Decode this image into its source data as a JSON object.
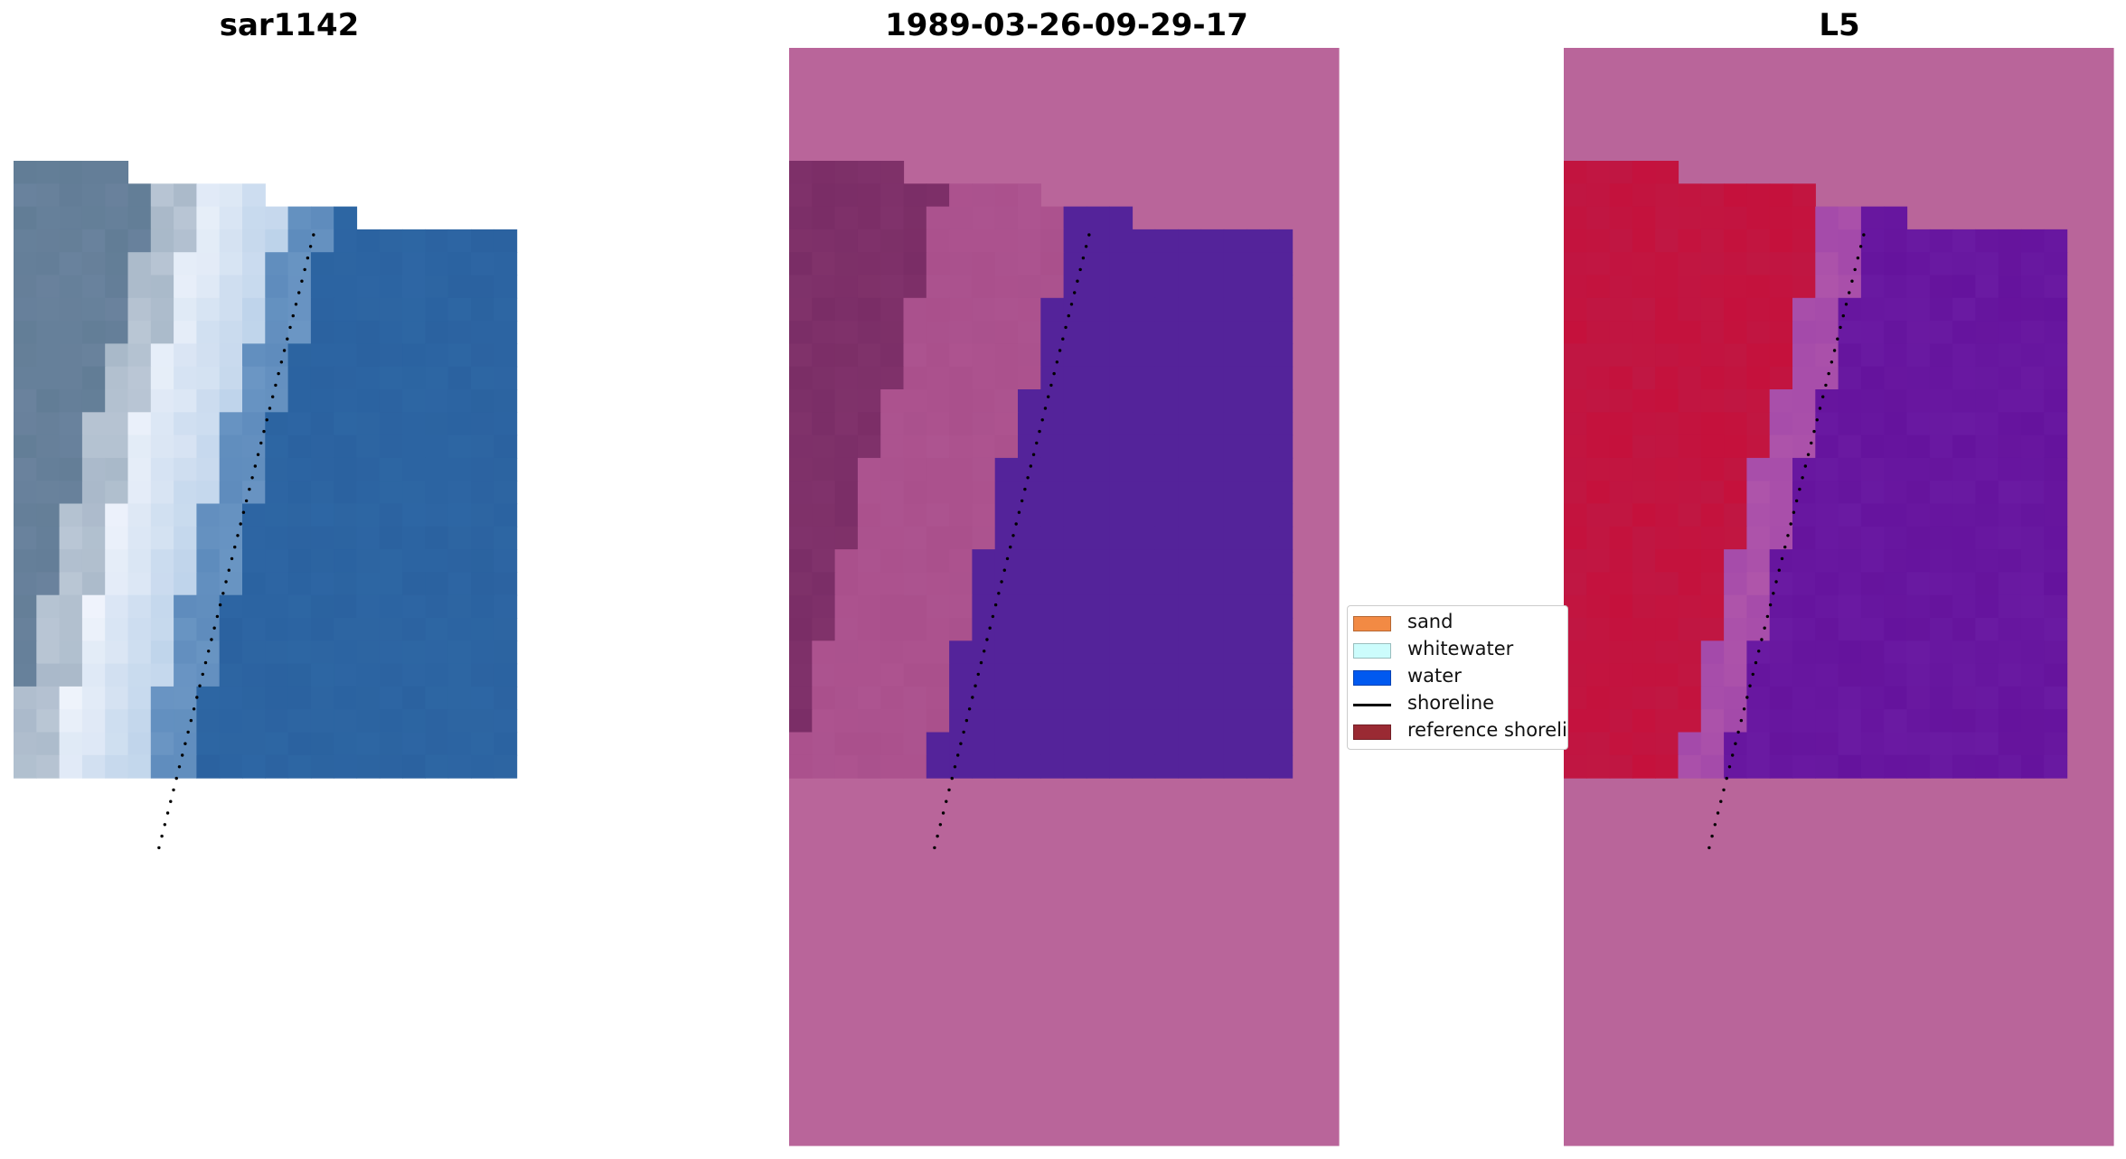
{
  "panels": [
    {
      "title": "sar1142",
      "kind": "rgb"
    },
    {
      "title": "1989-03-26-09-29-17",
      "kind": "classified"
    },
    {
      "title": "L5",
      "kind": "index"
    }
  ],
  "legend": {
    "items": [
      {
        "label": "sand",
        "color": "#f28a44",
        "type": "patch"
      },
      {
        "label": "whitewater",
        "color": "#ccfcfc",
        "type": "patch"
      },
      {
        "label": "water",
        "color": "#0059f0",
        "type": "patch"
      },
      {
        "label": "shoreline",
        "color": "#000000",
        "type": "line"
      },
      {
        "label": "reference shoreli",
        "color": "#9a2a33",
        "type": "patch"
      }
    ]
  },
  "colors": {
    "nodata_overlay": "#b9659a",
    "classified_dark_sand": "#7a2d66",
    "classified_water": "#54239a",
    "index_sand": "#c5113c",
    "index_water": "#6a1aa2",
    "rgb_water": "#2b62a0"
  }
}
